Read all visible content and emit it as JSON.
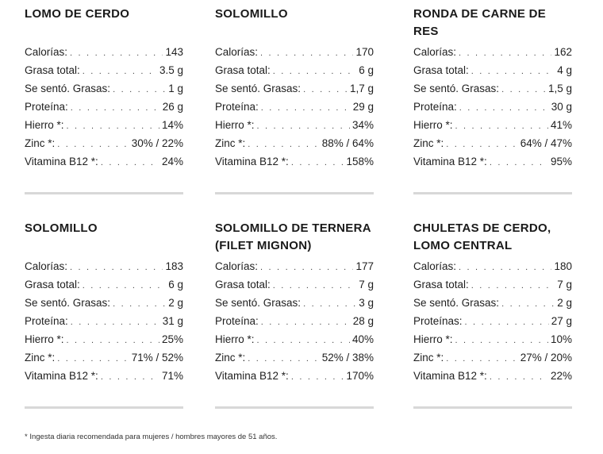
{
  "cards": [
    {
      "title": "LOMO DE CERDO",
      "rows": [
        {
          "label": "Calorías:",
          "value": "143"
        },
        {
          "label": "Grasa total:",
          "value": "3.5 g"
        },
        {
          "label": "Se sentó. Grasas:",
          "value": "1 g"
        },
        {
          "label": "Proteína:",
          "value": "26 g"
        },
        {
          "label": "Hierro *:",
          "value": "14%"
        },
        {
          "label": "Zinc *:",
          "value": "30% / 22%"
        },
        {
          "label": "Vitamina B12 *:",
          "value": "24%"
        }
      ]
    },
    {
      "title": "SOLOMILLO",
      "rows": [
        {
          "label": "Calorías:",
          "value": "170"
        },
        {
          "label": "Grasa total:",
          "value": "6 g"
        },
        {
          "label": "Se sentó. Grasas:",
          "value": "1,7 g"
        },
        {
          "label": "Proteína:",
          "value": "29 g"
        },
        {
          "label": "Hierro *:",
          "value": "34%"
        },
        {
          "label": "Zinc *:",
          "value": "88% / 64%"
        },
        {
          "label": "Vitamina B12 *:",
          "value": "158%"
        }
      ]
    },
    {
      "title": "RONDA DE CARNE DE RES",
      "rows": [
        {
          "label": "Calorías:",
          "value": "162"
        },
        {
          "label": "Grasa total:",
          "value": "4 g"
        },
        {
          "label": "Se sentó. Grasas:",
          "value": "1,5 g"
        },
        {
          "label": "Proteína:",
          "value": "30 g"
        },
        {
          "label": "Hierro *:",
          "value": "41%"
        },
        {
          "label": "Zinc *:",
          "value": "64% / 47%"
        },
        {
          "label": "Vitamina B12 *:",
          "value": "95%"
        }
      ]
    },
    {
      "title": "SOLOMILLO",
      "rows": [
        {
          "label": "Calorías:",
          "value": "183"
        },
        {
          "label": "Grasa total:",
          "value": "6 g"
        },
        {
          "label": "Se sentó. Grasas:",
          "value": "2 g"
        },
        {
          "label": "Proteína:",
          "value": "31 g"
        },
        {
          "label": "Hierro *:",
          "value": "25%"
        },
        {
          "label": "Zinc *:",
          "value": "71% / 52%"
        },
        {
          "label": "Vitamina B12 *:",
          "value": "71%"
        }
      ]
    },
    {
      "title": "SOLOMILLO DE TERNERA (FILET MIGNON)",
      "rows": [
        {
          "label": "Calorías:",
          "value": "177"
        },
        {
          "label": "Grasa total:",
          "value": "7 g"
        },
        {
          "label": "Se sentó. Grasas:",
          "value": "3 g"
        },
        {
          "label": "Proteína:",
          "value": "28 g"
        },
        {
          "label": "Hierro *:",
          "value": "40%"
        },
        {
          "label": "Zinc *:",
          "value": "52% / 38%"
        },
        {
          "label": "Vitamina B12 *:",
          "value": "170%"
        }
      ]
    },
    {
      "title": "CHULETAS DE CERDO, LOMO CENTRAL",
      "rows": [
        {
          "label": "Calorías:",
          "value": "180"
        },
        {
          "label": "Grasa total:",
          "value": "7 g"
        },
        {
          "label": "Se sentó. Grasas:",
          "value": "2 g"
        },
        {
          "label": "Proteínas:",
          "value": "27 g"
        },
        {
          "label": "Hierro *:",
          "value": "10%"
        },
        {
          "label": "Zinc *:",
          "value": "27% / 20%"
        },
        {
          "label": "Vitamina B12 *:",
          "value": "22%"
        }
      ]
    }
  ],
  "footnote": "* Ingesta diaria recomendada para mujeres / hombres mayores de 51 años."
}
